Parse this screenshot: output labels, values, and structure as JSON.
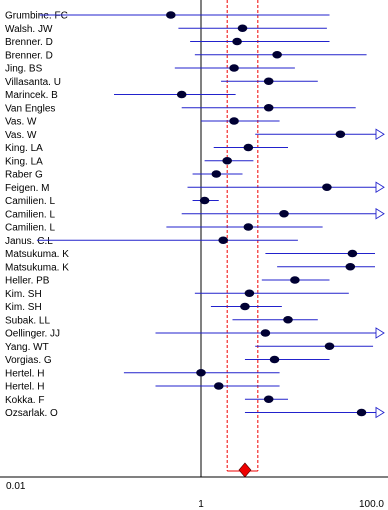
{
  "chart_data": {
    "type": "forest",
    "x_axis": {
      "scale": "log",
      "range": [
        0.01,
        100
      ],
      "tick_labels": [
        "0.01",
        "1",
        "100.0"
      ],
      "tick_values": [
        0.01,
        1,
        100
      ]
    },
    "reference_line": 1,
    "pooled": {
      "estimate": 3.2,
      "ci": [
        2.0,
        4.5
      ]
    },
    "studies": [
      {
        "name": "Grumbine. FC",
        "or": 0.45,
        "lo": 0.014,
        "hi": 30,
        "arrow": false
      },
      {
        "name": "Walsh. JW",
        "or": 3.0,
        "lo": 0.55,
        "hi": 28,
        "arrow": false
      },
      {
        "name": "Brenner. D",
        "or": 2.6,
        "lo": 0.75,
        "hi": 30,
        "arrow": false
      },
      {
        "name": "Brenner. D",
        "or": 7.5,
        "lo": 0.85,
        "hi": 80,
        "arrow": false
      },
      {
        "name": "Jing. BS",
        "or": 2.4,
        "lo": 0.5,
        "hi": 12,
        "arrow": false
      },
      {
        "name": "Villasanta. U",
        "or": 6.0,
        "lo": 1.7,
        "hi": 22,
        "arrow": false
      },
      {
        "name": "Marincek. B",
        "or": 0.6,
        "lo": 0.1,
        "hi": 2.5,
        "arrow": false
      },
      {
        "name": "Van Engles",
        "or": 6.0,
        "lo": 0.6,
        "hi": 60,
        "arrow": false
      },
      {
        "name": "Vas. W",
        "or": 2.4,
        "lo": 1.0,
        "hi": 8.0,
        "arrow": false
      },
      {
        "name": "Vas. W",
        "or": 40,
        "lo": 4.2,
        "hi": 150,
        "arrow": true
      },
      {
        "name": "King. LA",
        "or": 3.5,
        "lo": 1.4,
        "hi": 10,
        "arrow": false
      },
      {
        "name": "King. LA",
        "or": 2.0,
        "lo": 1.1,
        "hi": 4.0,
        "arrow": false
      },
      {
        "name": "Raber G",
        "or": 1.5,
        "lo": 0.8,
        "hi": 3.0,
        "arrow": false
      },
      {
        "name": "Feigen. M",
        "or": 28,
        "lo": 0.7,
        "hi": 150,
        "arrow": true
      },
      {
        "name": "Camilien. L",
        "or": 1.1,
        "lo": 0.8,
        "hi": 1.6,
        "arrow": false
      },
      {
        "name": "Camilien. L",
        "or": 9.0,
        "lo": 0.6,
        "hi": 150,
        "arrow": true
      },
      {
        "name": "Camilien. L",
        "or": 3.5,
        "lo": 0.4,
        "hi": 25,
        "arrow": false
      },
      {
        "name": "Janus. C.L",
        "or": 1.8,
        "lo": 0.013,
        "hi": 13,
        "arrow": false
      },
      {
        "name": "Matsukuma. K",
        "or": 55,
        "lo": 5.5,
        "hi": 115,
        "arrow": false
      },
      {
        "name": "Matsukuma. K",
        "or": 52,
        "lo": 7.5,
        "hi": 110,
        "arrow": false
      },
      {
        "name": "Heller. PB",
        "or": 12,
        "lo": 5.0,
        "hi": 30,
        "arrow": false
      },
      {
        "name": "Kim. SH",
        "or": 3.6,
        "lo": 0.85,
        "hi": 50,
        "arrow": false
      },
      {
        "name": "Kim. SH",
        "or": 3.2,
        "lo": 1.3,
        "hi": 8.5,
        "arrow": false
      },
      {
        "name": "Subak. LL",
        "or": 10,
        "lo": 2.3,
        "hi": 22,
        "arrow": false
      },
      {
        "name": "Oellinger. JJ",
        "or": 5.5,
        "lo": 0.3,
        "hi": 150,
        "arrow": true
      },
      {
        "name": "Yang. WT",
        "or": 30,
        "lo": 4.2,
        "hi": 95,
        "arrow": false
      },
      {
        "name": "Vorgias. G",
        "or": 7.0,
        "lo": 3.2,
        "hi": 30,
        "arrow": false
      },
      {
        "name": "Hertel. H",
        "or": 1.0,
        "lo": 0.13,
        "hi": 8.0,
        "arrow": false
      },
      {
        "name": "Hertel. H",
        "or": 1.6,
        "lo": 0.3,
        "hi": 8.0,
        "arrow": false
      },
      {
        "name": "Kokka. F",
        "or": 6.0,
        "lo": 3.2,
        "hi": 10,
        "arrow": false
      },
      {
        "name": "Ozsarlak. O",
        "or": 70,
        "lo": 3.2,
        "hi": 150,
        "arrow": true
      }
    ],
    "colors": {
      "ci_line": "#2222cc",
      "marker": "#000033",
      "pooled_fill": "#ee0000",
      "pooled_lines": "#ee0000",
      "axis": "#000000"
    }
  }
}
